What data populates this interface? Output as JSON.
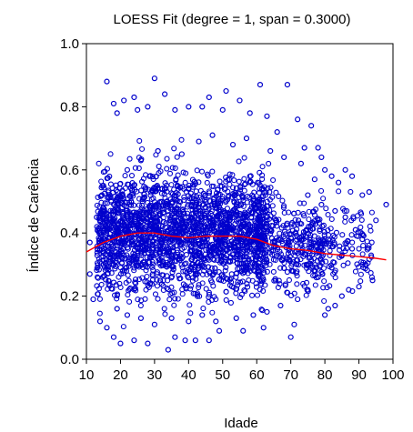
{
  "chart_data": {
    "type": "scatter",
    "title": "LOESS Fit (degree = 1, span = 0.3000)",
    "xlabel": "Idade",
    "ylabel": "Índice de Carência",
    "xlim": [
      10,
      100
    ],
    "ylim": [
      0.0,
      1.0
    ],
    "x_ticks": [
      "10",
      "20",
      "30",
      "40",
      "50",
      "60",
      "70",
      "80",
      "90",
      "100"
    ],
    "y_ticks": [
      "0.0",
      "0.2",
      "0.4",
      "0.6",
      "0.8",
      "1.0"
    ],
    "grid": false,
    "legend": "none",
    "series": [
      {
        "kind": "scatter",
        "marker": "open-circle",
        "color": "#0000cc",
        "points": [
          [
            16,
            0.88
          ],
          [
            18,
            0.81
          ],
          [
            21,
            0.82
          ],
          [
            24,
            0.83
          ],
          [
            30,
            0.89
          ],
          [
            33,
            0.84
          ],
          [
            46,
            0.83
          ],
          [
            51,
            0.85
          ],
          [
            61,
            0.87
          ],
          [
            69,
            0.87
          ],
          [
            19,
            0.78
          ],
          [
            25,
            0.79
          ],
          [
            28,
            0.8
          ],
          [
            36,
            0.79
          ],
          [
            40,
            0.8
          ],
          [
            44,
            0.8
          ],
          [
            50,
            0.79
          ],
          [
            55,
            0.82
          ],
          [
            58,
            0.78
          ],
          [
            63,
            0.77
          ],
          [
            72,
            0.76
          ],
          [
            74,
            0.67
          ],
          [
            78,
            0.67
          ],
          [
            79,
            0.64
          ],
          [
            66,
            0.72
          ],
          [
            76,
            0.74
          ],
          [
            80,
            0.6
          ],
          [
            82,
            0.58
          ],
          [
            84,
            0.56
          ],
          [
            86,
            0.6
          ],
          [
            88,
            0.58
          ],
          [
            91,
            0.52
          ],
          [
            93,
            0.53
          ],
          [
            95,
            0.44
          ],
          [
            98,
            0.49
          ],
          [
            92,
            0.3
          ],
          [
            94,
            0.25
          ],
          [
            90,
            0.23
          ],
          [
            87,
            0.22
          ],
          [
            85,
            0.2
          ],
          [
            83,
            0.17
          ],
          [
            81,
            0.16
          ],
          [
            80,
            0.14
          ],
          [
            71,
            0.11
          ],
          [
            70,
            0.07
          ],
          [
            62,
            0.1
          ],
          [
            56,
            0.09
          ],
          [
            49,
            0.09
          ],
          [
            46,
            0.06
          ],
          [
            42,
            0.06
          ],
          [
            39,
            0.06
          ],
          [
            36,
            0.07
          ],
          [
            34,
            0.03
          ],
          [
            28,
            0.05
          ],
          [
            24,
            0.06
          ],
          [
            20,
            0.05
          ],
          [
            18,
            0.07
          ],
          [
            16,
            0.1
          ],
          [
            14,
            0.12
          ],
          [
            12,
            0.19
          ],
          [
            11,
            0.27
          ],
          [
            11,
            0.37
          ],
          [
            13,
            0.45
          ],
          [
            15,
            0.55
          ],
          [
            22,
            0.6
          ],
          [
            26,
            0.63
          ],
          [
            31,
            0.66
          ],
          [
            38,
            0.65
          ],
          [
            43,
            0.69
          ],
          [
            47,
            0.71
          ],
          [
            53,
            0.68
          ],
          [
            57,
            0.7
          ],
          [
            64,
            0.66
          ],
          [
            68,
            0.64
          ],
          [
            73,
            0.62
          ],
          [
            77,
            0.57
          ],
          [
            75,
            0.52
          ],
          [
            79,
            0.49
          ],
          [
            83,
            0.47
          ],
          [
            86,
            0.45
          ],
          [
            89,
            0.41
          ],
          [
            91,
            0.38
          ],
          [
            88,
            0.35
          ],
          [
            85,
            0.33
          ],
          [
            82,
            0.29
          ],
          [
            78,
            0.26
          ],
          [
            75,
            0.22
          ],
          [
            72,
            0.19
          ],
          [
            67,
            0.17
          ],
          [
            63,
            0.15
          ],
          [
            59,
            0.14
          ],
          [
            54,
            0.13
          ],
          [
            48,
            0.12
          ],
          [
            44,
            0.14
          ],
          [
            40,
            0.12
          ],
          [
            35,
            0.13
          ],
          [
            30,
            0.11
          ],
          [
            26,
            0.13
          ],
          [
            22,
            0.14
          ],
          [
            19,
            0.16
          ]
        ]
      },
      {
        "kind": "line",
        "name": "",
        "color": "#ff0000",
        "x": [
          10,
          15,
          20,
          25,
          30,
          35,
          40,
          45,
          50,
          55,
          60,
          65,
          70,
          75,
          80,
          85,
          90,
          95,
          98
        ],
        "y": [
          0.34,
          0.37,
          0.39,
          0.4,
          0.4,
          0.39,
          0.385,
          0.39,
          0.39,
          0.39,
          0.38,
          0.36,
          0.35,
          0.345,
          0.335,
          0.33,
          0.325,
          0.32,
          0.315
        ]
      }
    ]
  }
}
